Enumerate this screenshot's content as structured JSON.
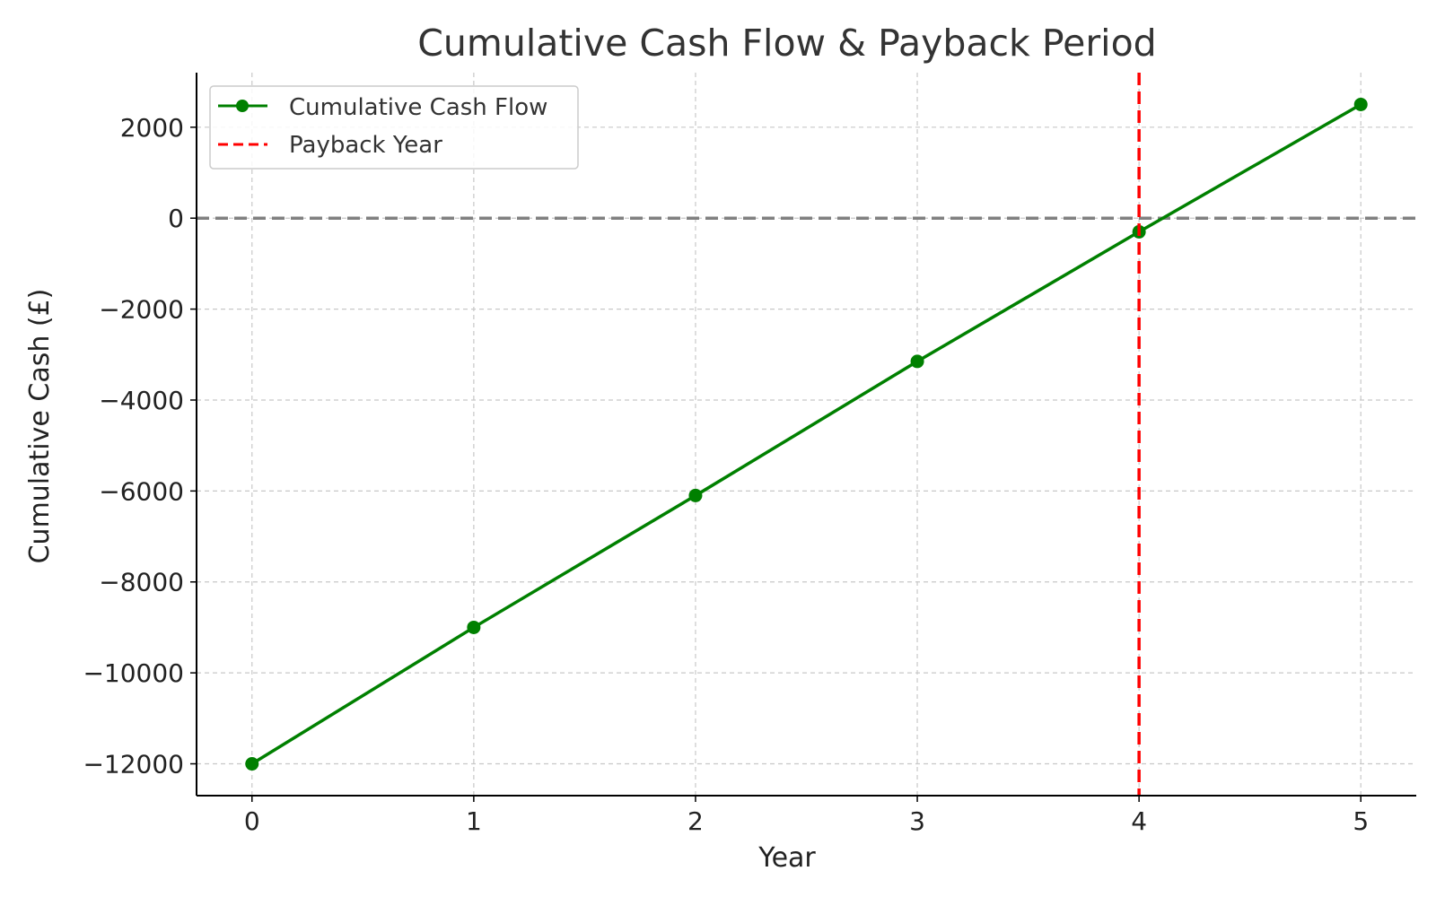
{
  "chart_data": {
    "type": "line",
    "title": "Cumulative Cash Flow & Payback Period",
    "xlabel": "Year",
    "ylabel": "Cumulative Cash (£)",
    "x": [
      0,
      1,
      2,
      3,
      4,
      5
    ],
    "x_ticks": [
      "0",
      "1",
      "2",
      "3",
      "4",
      "5"
    ],
    "y_ticks": [
      "2000",
      "0",
      "−2000",
      "−4000",
      "−6000",
      "−8000",
      "−10000",
      "−12000"
    ],
    "y_tick_values": [
      2000,
      0,
      -2000,
      -4000,
      -6000,
      -8000,
      -10000,
      -12000
    ],
    "xlim": [
      -0.25,
      5.25
    ],
    "ylim": [
      -12700,
      3200
    ],
    "grid": true,
    "series": [
      {
        "name": "Cumulative Cash Flow",
        "values": [
          -12000,
          -9000,
          -6100,
          -3150,
          -300,
          2500
        ],
        "color": "#008000",
        "marker": "circle"
      }
    ],
    "reference_lines": [
      {
        "orientation": "vertical",
        "x": 4,
        "name": "Payback Year",
        "color": "#ff0000",
        "style": "dashed"
      },
      {
        "orientation": "horizontal",
        "y": 0,
        "color": "#808080",
        "style": "dashed"
      }
    ],
    "legend": {
      "placement": "upper-left",
      "entries": [
        "Cumulative Cash Flow",
        "Payback Year"
      ]
    }
  }
}
